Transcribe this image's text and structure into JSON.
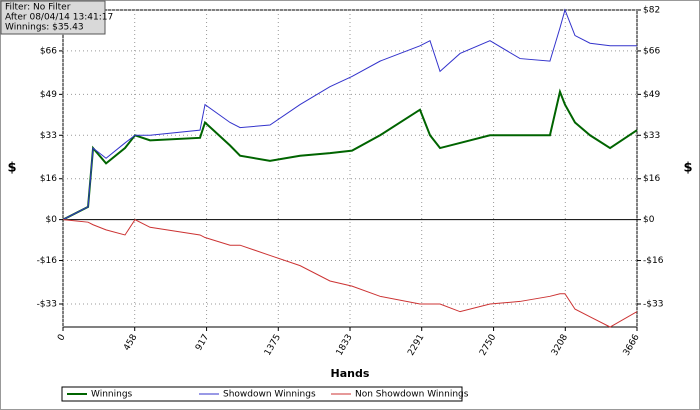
{
  "chart_data": {
    "type": "line",
    "annotations": [
      "Filter: No Filter",
      "After 08/04/14 13:41:17",
      "Winnings: $35.43"
    ],
    "x_label": "Hands",
    "y_label": "$",
    "y2_label": "$",
    "x": [
      0,
      160,
      192,
      275,
      396,
      460,
      556,
      875,
      907,
      1067,
      1131,
      1322,
      1514,
      1705,
      1846,
      2025,
      2280,
      2344,
      2408,
      2536,
      2727,
      2919,
      3110,
      3174,
      3206,
      3270,
      3366,
      3494,
      3666
    ],
    "series": [
      {
        "name": "Winnings",
        "color": "#006400",
        "values": [
          0,
          5,
          28,
          22,
          28,
          33,
          31,
          32,
          38,
          29,
          25,
          23,
          25,
          26,
          27,
          33,
          43,
          33,
          28,
          30,
          33,
          33,
          33,
          50,
          45,
          38,
          33,
          28,
          35
        ]
      },
      {
        "name": "Showdown Winnings",
        "color": "#3333cc",
        "values": [
          0,
          5,
          28,
          24,
          30,
          33,
          33,
          35,
          45,
          38,
          36,
          37,
          45,
          52,
          56,
          62,
          68,
          70,
          58,
          65,
          70,
          63,
          62,
          75,
          82,
          72,
          69,
          68,
          68
        ]
      },
      {
        "name": "Non Showdown Winnings",
        "color": "#cc3333",
        "values": [
          0,
          -1,
          -2,
          -4,
          -6,
          0,
          -3,
          -6,
          -7,
          -10,
          -10,
          -14,
          -18,
          -24,
          -26,
          -30,
          -33,
          -33,
          -33,
          -36,
          -33,
          -32,
          -30,
          -29,
          -29,
          -35,
          -38,
          -42,
          -36
        ]
      }
    ],
    "xlim": [
      0,
      3666
    ],
    "xticks": [
      0,
      458,
      917,
      1375,
      1833,
      2291,
      2750,
      3208,
      3666
    ],
    "ylim": [
      -42,
      82
    ],
    "yticks": [
      {
        "value": 82,
        "label": "$82"
      },
      {
        "value": 66,
        "label": "$66"
      },
      {
        "value": 49,
        "label": "$49"
      },
      {
        "value": 33,
        "label": "$33"
      },
      {
        "value": 16,
        "label": "$16"
      },
      {
        "value": 0,
        "label": "$0"
      },
      {
        "value": -16,
        "label": "-$16"
      },
      {
        "value": -33,
        "label": "-$33"
      }
    ],
    "grid": true
  }
}
